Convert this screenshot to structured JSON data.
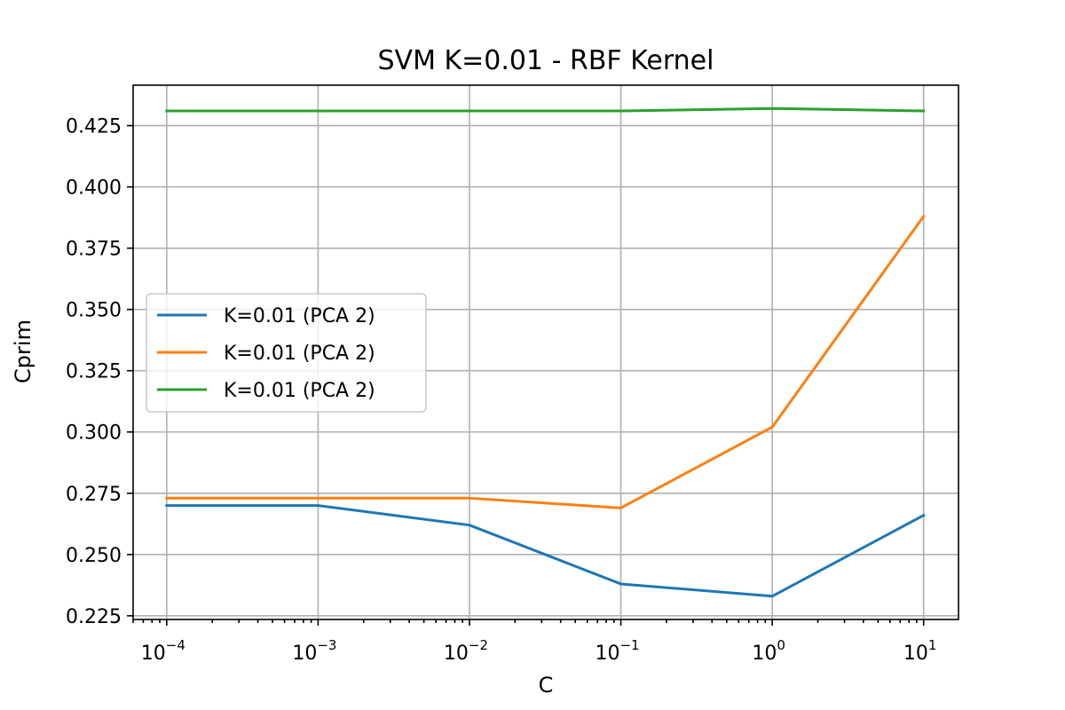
{
  "chart_data": {
    "type": "line",
    "title": "SVM K=0.01 - RBF Kernel",
    "xlabel": "C",
    "ylabel": "Cprim",
    "xscale": "log",
    "x": [
      0.0001,
      0.001,
      0.01,
      0.1,
      1,
      10
    ],
    "xlim": [
      6e-05,
      17
    ],
    "ylim": [
      0.2235,
      0.4415
    ],
    "x_ticks": [
      {
        "value": 0.0001,
        "base": "10",
        "exp": "−4"
      },
      {
        "value": 0.001,
        "base": "10",
        "exp": "−3"
      },
      {
        "value": 0.01,
        "base": "10",
        "exp": "−2"
      },
      {
        "value": 0.1,
        "base": "10",
        "exp": "−1"
      },
      {
        "value": 1,
        "base": "10",
        "exp": "0"
      },
      {
        "value": 10,
        "base": "10",
        "exp": "1"
      }
    ],
    "y_ticks": [
      {
        "value": 0.225,
        "label": "0.225"
      },
      {
        "value": 0.25,
        "label": "0.250"
      },
      {
        "value": 0.275,
        "label": "0.275"
      },
      {
        "value": 0.3,
        "label": "0.300"
      },
      {
        "value": 0.325,
        "label": "0.325"
      },
      {
        "value": 0.35,
        "label": "0.350"
      },
      {
        "value": 0.375,
        "label": "0.375"
      },
      {
        "value": 0.4,
        "label": "0.400"
      },
      {
        "value": 0.425,
        "label": "0.425"
      }
    ],
    "grid": true,
    "legend_position": "center-left",
    "series": [
      {
        "name": "K=0.01 (PCA 2)",
        "color": "#1f77b4",
        "values": [
          0.27,
          0.27,
          0.262,
          0.238,
          0.233,
          0.266
        ]
      },
      {
        "name": "K=0.01 (PCA 2)",
        "color": "#ff7f0e",
        "values": [
          0.273,
          0.273,
          0.273,
          0.269,
          0.302,
          0.388
        ]
      },
      {
        "name": "K=0.01 (PCA 2)",
        "color": "#2ca02c",
        "values": [
          0.431,
          0.431,
          0.431,
          0.431,
          0.432,
          0.431
        ]
      }
    ]
  }
}
